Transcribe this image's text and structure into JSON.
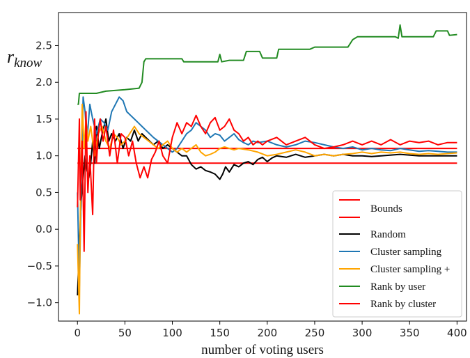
{
  "chart_data": {
    "type": "line",
    "xlabel": "number of voting users",
    "ylabel": {
      "base": "r",
      "subscript": "know"
    },
    "xlim": [
      -20,
      410
    ],
    "ylim": [
      -1.25,
      2.95
    ],
    "xticks": [
      0,
      50,
      100,
      150,
      200,
      250,
      300,
      350,
      400
    ],
    "yticks": [
      -1.0,
      -0.5,
      0.0,
      0.5,
      1.0,
      1.5,
      2.0,
      2.5
    ],
    "ytick_labels": [
      "−1.0",
      "−0.5",
      "0.0",
      "0.5",
      "1.0",
      "1.5",
      "2.0",
      "2.5"
    ],
    "grid": false,
    "legend_position": "bottom-right",
    "bounds": {
      "name": "Bounds",
      "color": "#ff0000",
      "upper": 1.1,
      "lower": 0.9
    },
    "series": [
      {
        "name": "Random",
        "color": "#000000",
        "points": [
          [
            0,
            -0.9
          ],
          [
            2,
            -0.2
          ],
          [
            4,
            0.4
          ],
          [
            6,
            0.7
          ],
          [
            8,
            1.0
          ],
          [
            10,
            0.8
          ],
          [
            12,
            0.7
          ],
          [
            14,
            0.9
          ],
          [
            16,
            1.2
          ],
          [
            18,
            0.9
          ],
          [
            20,
            1.4
          ],
          [
            23,
            1.1
          ],
          [
            26,
            1.3
          ],
          [
            30,
            1.5
          ],
          [
            33,
            1.2
          ],
          [
            36,
            1.3
          ],
          [
            40,
            1.2
          ],
          [
            44,
            1.3
          ],
          [
            48,
            1.1
          ],
          [
            52,
            1.25
          ],
          [
            56,
            1.2
          ],
          [
            60,
            1.35
          ],
          [
            64,
            1.2
          ],
          [
            68,
            1.3
          ],
          [
            72,
            1.25
          ],
          [
            76,
            1.2
          ],
          [
            80,
            1.15
          ],
          [
            85,
            1.2
          ],
          [
            90,
            1.1
          ],
          [
            95,
            1.15
          ],
          [
            100,
            1.1
          ],
          [
            105,
            1.05
          ],
          [
            110,
            1.0
          ],
          [
            115,
            1.0
          ],
          [
            120,
            0.88
          ],
          [
            125,
            0.82
          ],
          [
            130,
            0.85
          ],
          [
            135,
            0.8
          ],
          [
            140,
            0.78
          ],
          [
            145,
            0.75
          ],
          [
            150,
            0.68
          ],
          [
            153,
            0.75
          ],
          [
            156,
            0.85
          ],
          [
            160,
            0.78
          ],
          [
            165,
            0.88
          ],
          [
            170,
            0.85
          ],
          [
            175,
            0.9
          ],
          [
            180,
            0.92
          ],
          [
            185,
            0.88
          ],
          [
            190,
            0.95
          ],
          [
            195,
            0.98
          ],
          [
            200,
            0.92
          ],
          [
            205,
            0.97
          ],
          [
            210,
            1.0
          ],
          [
            220,
            0.98
          ],
          [
            230,
            1.02
          ],
          [
            240,
            0.98
          ],
          [
            250,
            1.0
          ],
          [
            260,
            1.02
          ],
          [
            270,
            1.0
          ],
          [
            280,
            1.02
          ],
          [
            290,
            1.0
          ],
          [
            300,
            1.0
          ],
          [
            310,
            0.99
          ],
          [
            320,
            1.0
          ],
          [
            340,
            1.02
          ],
          [
            360,
            1.0
          ],
          [
            380,
            1.0
          ],
          [
            400,
            1.0
          ]
        ]
      },
      {
        "name": "Cluster sampling",
        "color": "#1f77b4",
        "points": [
          [
            0,
            0.5
          ],
          [
            2,
            -0.8
          ],
          [
            4,
            0.6
          ],
          [
            6,
            1.8
          ],
          [
            8,
            1.6
          ],
          [
            10,
            1.2
          ],
          [
            13,
            1.7
          ],
          [
            16,
            1.5
          ],
          [
            20,
            1.3
          ],
          [
            24,
            1.5
          ],
          [
            28,
            1.45
          ],
          [
            32,
            1.35
          ],
          [
            36,
            1.6
          ],
          [
            40,
            1.7
          ],
          [
            44,
            1.8
          ],
          [
            48,
            1.75
          ],
          [
            52,
            1.6
          ],
          [
            56,
            1.55
          ],
          [
            60,
            1.5
          ],
          [
            64,
            1.45
          ],
          [
            68,
            1.4
          ],
          [
            72,
            1.35
          ],
          [
            76,
            1.3
          ],
          [
            80,
            1.25
          ],
          [
            85,
            1.2
          ],
          [
            90,
            1.15
          ],
          [
            95,
            1.1
          ],
          [
            100,
            1.05
          ],
          [
            105,
            1.1
          ],
          [
            110,
            1.2
          ],
          [
            115,
            1.3
          ],
          [
            120,
            1.35
          ],
          [
            125,
            1.45
          ],
          [
            130,
            1.4
          ],
          [
            135,
            1.35
          ],
          [
            140,
            1.25
          ],
          [
            145,
            1.3
          ],
          [
            150,
            1.28
          ],
          [
            155,
            1.2
          ],
          [
            160,
            1.25
          ],
          [
            165,
            1.3
          ],
          [
            170,
            1.22
          ],
          [
            175,
            1.18
          ],
          [
            180,
            1.15
          ],
          [
            185,
            1.2
          ],
          [
            190,
            1.18
          ],
          [
            200,
            1.2
          ],
          [
            210,
            1.15
          ],
          [
            220,
            1.12
          ],
          [
            230,
            1.15
          ],
          [
            240,
            1.2
          ],
          [
            250,
            1.18
          ],
          [
            260,
            1.15
          ],
          [
            270,
            1.12
          ],
          [
            280,
            1.1
          ],
          [
            290,
            1.12
          ],
          [
            300,
            1.08
          ],
          [
            310,
            1.1
          ],
          [
            320,
            1.08
          ],
          [
            330,
            1.07
          ],
          [
            340,
            1.1
          ],
          [
            350,
            1.08
          ],
          [
            360,
            1.06
          ],
          [
            370,
            1.07
          ],
          [
            380,
            1.06
          ],
          [
            390,
            1.05
          ],
          [
            400,
            1.05
          ]
        ]
      },
      {
        "name": "Cluster sampling +",
        "color": "#ffa500",
        "points": [
          [
            0,
            -0.2
          ],
          [
            2,
            -1.15
          ],
          [
            3,
            0.2
          ],
          [
            5,
            1.7
          ],
          [
            7,
            1.1
          ],
          [
            9,
            1.5
          ],
          [
            11,
            1.2
          ],
          [
            14,
            1.4
          ],
          [
            18,
            1.0
          ],
          [
            22,
            1.3
          ],
          [
            26,
            1.4
          ],
          [
            30,
            1.2
          ],
          [
            34,
            1.1
          ],
          [
            38,
            1.3
          ],
          [
            42,
            1.25
          ],
          [
            46,
            1.15
          ],
          [
            50,
            1.2
          ],
          [
            55,
            1.3
          ],
          [
            60,
            1.4
          ],
          [
            65,
            1.3
          ],
          [
            70,
            1.25
          ],
          [
            75,
            1.2
          ],
          [
            80,
            1.15
          ],
          [
            85,
            1.1
          ],
          [
            90,
            1.15
          ],
          [
            95,
            1.2
          ],
          [
            100,
            1.1
          ],
          [
            105,
            1.05
          ],
          [
            110,
            1.1
          ],
          [
            115,
            1.05
          ],
          [
            120,
            1.1
          ],
          [
            125,
            1.15
          ],
          [
            130,
            1.05
          ],
          [
            135,
            1.0
          ],
          [
            140,
            1.02
          ],
          [
            145,
            1.05
          ],
          [
            150,
            1.1
          ],
          [
            155,
            1.12
          ],
          [
            160,
            1.1
          ],
          [
            165,
            1.08
          ],
          [
            170,
            1.1
          ],
          [
            180,
            1.08
          ],
          [
            190,
            1.05
          ],
          [
            200,
            1.0
          ],
          [
            210,
            1.02
          ],
          [
            220,
            1.05
          ],
          [
            230,
            1.08
          ],
          [
            240,
            1.05
          ],
          [
            250,
            1.0
          ],
          [
            260,
            1.02
          ],
          [
            270,
            1.0
          ],
          [
            280,
            1.02
          ],
          [
            290,
            1.03
          ],
          [
            300,
            1.05
          ],
          [
            310,
            1.03
          ],
          [
            320,
            1.05
          ],
          [
            330,
            1.04
          ],
          [
            340,
            1.05
          ],
          [
            350,
            1.03
          ],
          [
            360,
            1.02
          ],
          [
            370,
            1.03
          ],
          [
            380,
            1.02
          ],
          [
            390,
            1.03
          ],
          [
            400,
            1.04
          ]
        ]
      },
      {
        "name": "Rank by user",
        "color": "#228b22",
        "points": [
          [
            0,
            1.7
          ],
          [
            1,
            1.7
          ],
          [
            2,
            1.85
          ],
          [
            10,
            1.85
          ],
          [
            20,
            1.85
          ],
          [
            30,
            1.88
          ],
          [
            50,
            1.9
          ],
          [
            65,
            1.92
          ],
          [
            68,
            2.0
          ],
          [
            70,
            2.28
          ],
          [
            72,
            2.32
          ],
          [
            90,
            2.32
          ],
          [
            110,
            2.32
          ],
          [
            112,
            2.28
          ],
          [
            148,
            2.28
          ],
          [
            150,
            2.38
          ],
          [
            152,
            2.28
          ],
          [
            160,
            2.3
          ],
          [
            175,
            2.3
          ],
          [
            178,
            2.42
          ],
          [
            192,
            2.42
          ],
          [
            195,
            2.33
          ],
          [
            200,
            2.33
          ],
          [
            210,
            2.33
          ],
          [
            212,
            2.45
          ],
          [
            245,
            2.45
          ],
          [
            250,
            2.48
          ],
          [
            285,
            2.48
          ],
          [
            290,
            2.58
          ],
          [
            295,
            2.62
          ],
          [
            335,
            2.62
          ],
          [
            338,
            2.6
          ],
          [
            340,
            2.78
          ],
          [
            342,
            2.62
          ],
          [
            360,
            2.62
          ],
          [
            375,
            2.62
          ],
          [
            378,
            2.7
          ],
          [
            390,
            2.7
          ],
          [
            392,
            2.64
          ],
          [
            400,
            2.65
          ]
        ]
      },
      {
        "name": "Rank by cluster",
        "color": "#ff0000",
        "points": [
          [
            0,
            0.3
          ],
          [
            2,
            1.5
          ],
          [
            3,
            0.4
          ],
          [
            5,
            1.2
          ],
          [
            7,
            -0.3
          ],
          [
            9,
            1.6
          ],
          [
            11,
            0.5
          ],
          [
            13,
            1.0
          ],
          [
            16,
            0.2
          ],
          [
            18,
            1.5
          ],
          [
            20,
            0.9
          ],
          [
            22,
            1.3
          ],
          [
            24,
            1.5
          ],
          [
            27,
            1.2
          ],
          [
            30,
            1.4
          ],
          [
            34,
            1.0
          ],
          [
            38,
            1.35
          ],
          [
            42,
            0.9
          ],
          [
            46,
            1.3
          ],
          [
            50,
            1.25
          ],
          [
            54,
            1.0
          ],
          [
            58,
            1.2
          ],
          [
            62,
            0.9
          ],
          [
            66,
            0.7
          ],
          [
            70,
            0.85
          ],
          [
            74,
            0.7
          ],
          [
            78,
            0.95
          ],
          [
            82,
            1.05
          ],
          [
            86,
            1.2
          ],
          [
            90,
            1.0
          ],
          [
            95,
            0.9
          ],
          [
            100,
            1.25
          ],
          [
            105,
            1.45
          ],
          [
            110,
            1.3
          ],
          [
            115,
            1.45
          ],
          [
            120,
            1.4
          ],
          [
            125,
            1.55
          ],
          [
            130,
            1.4
          ],
          [
            135,
            1.3
          ],
          [
            140,
            1.45
          ],
          [
            145,
            1.52
          ],
          [
            150,
            1.35
          ],
          [
            155,
            1.4
          ],
          [
            160,
            1.5
          ],
          [
            165,
            1.35
          ],
          [
            170,
            1.3
          ],
          [
            175,
            1.2
          ],
          [
            180,
            1.25
          ],
          [
            185,
            1.15
          ],
          [
            190,
            1.2
          ],
          [
            195,
            1.15
          ],
          [
            200,
            1.2
          ],
          [
            210,
            1.25
          ],
          [
            220,
            1.15
          ],
          [
            230,
            1.2
          ],
          [
            240,
            1.25
          ],
          [
            250,
            1.15
          ],
          [
            260,
            1.1
          ],
          [
            270,
            1.12
          ],
          [
            280,
            1.15
          ],
          [
            290,
            1.2
          ],
          [
            300,
            1.15
          ],
          [
            310,
            1.2
          ],
          [
            320,
            1.15
          ],
          [
            330,
            1.22
          ],
          [
            340,
            1.15
          ],
          [
            350,
            1.2
          ],
          [
            360,
            1.18
          ],
          [
            370,
            1.2
          ],
          [
            380,
            1.15
          ],
          [
            390,
            1.18
          ],
          [
            400,
            1.18
          ]
        ]
      }
    ]
  }
}
